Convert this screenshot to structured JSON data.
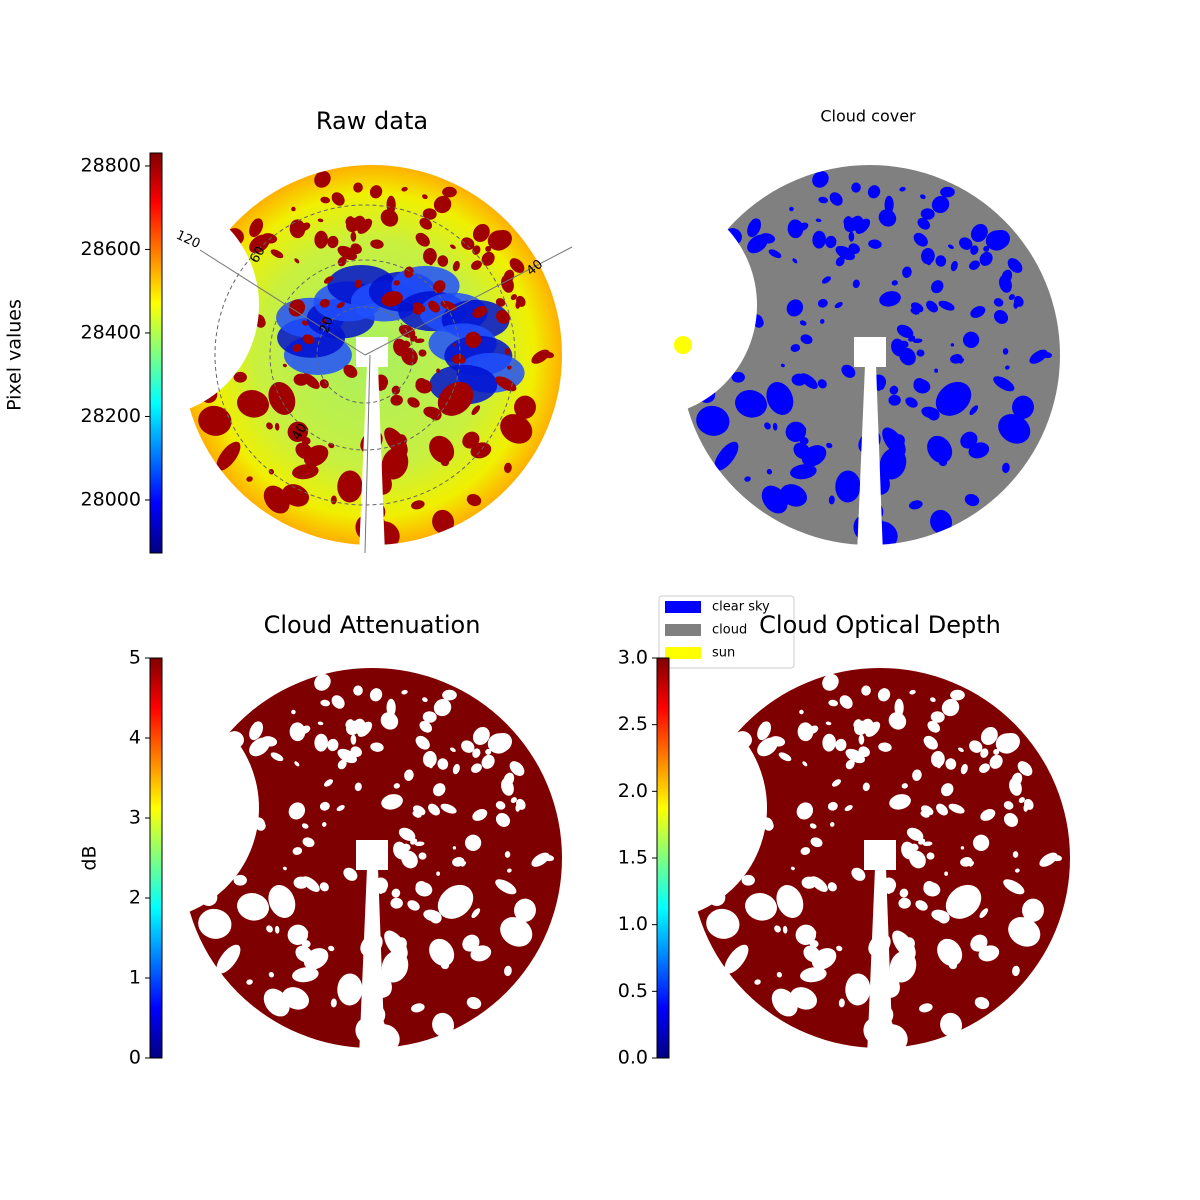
{
  "chart_data": [
    {
      "type": "image",
      "title": "Raw data",
      "colorbar_label": "Pixel values",
      "clim": [
        27873,
        28831
      ],
      "cticks": [
        28000,
        28200,
        28400,
        28600,
        28800
      ],
      "annotations": [
        "120",
        "60",
        "40",
        "20",
        "40"
      ]
    },
    {
      "type": "categorical",
      "title": "Cloud cover",
      "legend": [
        {
          "name": "clear sky",
          "color": "#0000ff"
        },
        {
          "name": "cloud",
          "color": "#808080"
        },
        {
          "name": "sun",
          "color": "#ffff00"
        }
      ]
    },
    {
      "type": "image",
      "title": "Cloud Attenuation",
      "colorbar_label": "dB",
      "clim": [
        0,
        5
      ],
      "cticks": [
        0,
        1,
        2,
        3,
        4,
        5
      ]
    },
    {
      "type": "image",
      "title": "Cloud Optical Depth",
      "clim": [
        0,
        3
      ],
      "cticks": [
        {
          "value": 0,
          "label": "0.0"
        },
        {
          "value": 0.5,
          "label": "0.5"
        },
        {
          "value": 1,
          "label": "1.0"
        },
        {
          "value": 1.5,
          "label": "1.5"
        },
        {
          "value": 2,
          "label": "2.0"
        },
        {
          "value": 2.5,
          "label": "2.5"
        },
        {
          "value": 3,
          "label": "3.0"
        }
      ]
    }
  ]
}
